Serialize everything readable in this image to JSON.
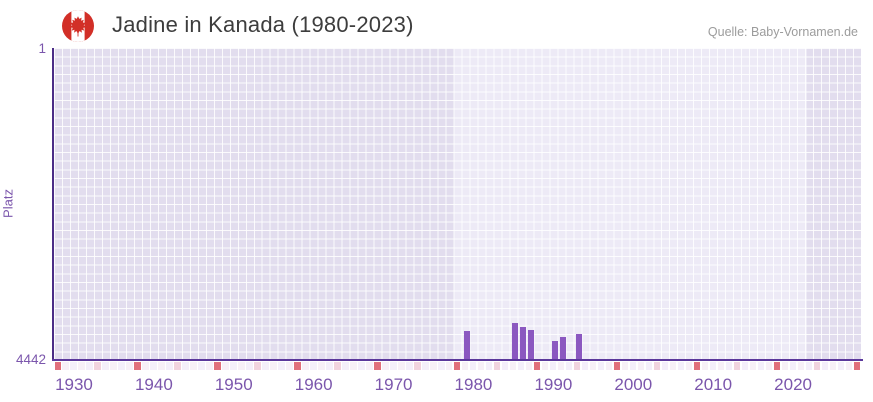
{
  "header": {
    "title": "Jadine in Kanada (1980-2023)",
    "source": "Quelle: Baby-Vornamen.de",
    "flag_icon": "canada-flag-round"
  },
  "chart_data": {
    "type": "bar",
    "title": "Jadine in Kanada (1980-2023)",
    "source": "Quelle: Baby-Vornamen.de",
    "ylabel": "Platz",
    "y_axis": {
      "top_tick": "1",
      "bottom_tick": "4442",
      "min": 1,
      "max": 4442,
      "inverted": true
    },
    "x_axis": {
      "first_year": 1928,
      "last_year": 2028,
      "tick_years": [
        1930,
        1940,
        1950,
        1960,
        1970,
        1980,
        1990,
        2000,
        2010,
        2020
      ]
    },
    "highlight_period": {
      "from": 1980,
      "to": 2023
    },
    "series": [
      {
        "name": "Platz",
        "points": [
          {
            "year": 1980,
            "rank": 4024
          },
          {
            "year": 1986,
            "rank": 3910
          },
          {
            "year": 1987,
            "rank": 3975
          },
          {
            "year": 1988,
            "rank": 4014
          },
          {
            "year": 1991,
            "rank": 4175
          },
          {
            "year": 1992,
            "rank": 4118
          },
          {
            "year": 1994,
            "rank": 4067
          }
        ]
      }
    ],
    "decade_strip": {
      "dark_red_year_ending": 8,
      "pink_year_ending": 3
    },
    "grid": true,
    "legend": "none",
    "colors": {
      "bar": "#8b58c0",
      "axis_y_line": "#4b2c86",
      "axis_x_line": "#5b389b",
      "tick_text": "#7b56ac",
      "bg_outside": "#e2ddee",
      "bg_highlight": "#edeaf6",
      "strip_dark": "#e1707b",
      "strip_pink": "#f1d3de",
      "strip_light": "#f4effa",
      "strip_light_alt": "#f7f0f7",
      "title_text": "#3d3d3d",
      "source_text": "#9c9c9c",
      "flag_red": "#d22f27"
    }
  }
}
